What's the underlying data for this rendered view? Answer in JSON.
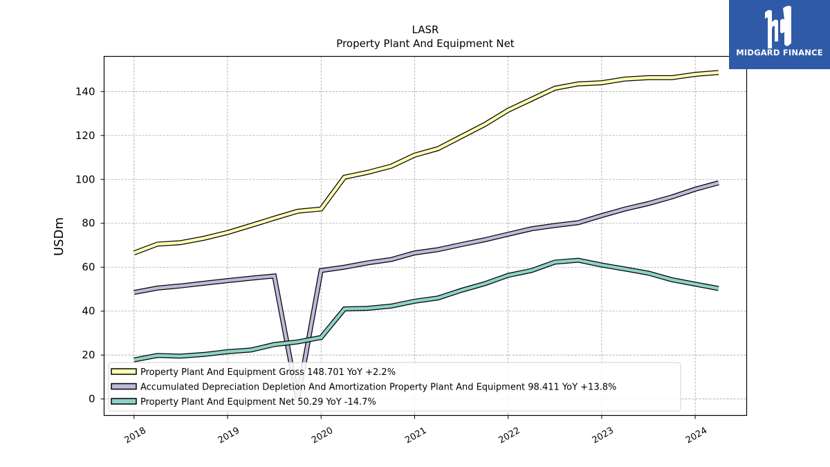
{
  "chart_data": {
    "type": "line",
    "title": "LASR",
    "subtitle": "Property Plant And Equipment Net",
    "xlabel": "",
    "ylabel": "USDm",
    "ylim": [
      -7.5,
      156
    ],
    "xlim": [
      2017.68,
      2024.55
    ],
    "yticks": [
      0,
      20,
      40,
      60,
      80,
      100,
      120,
      140
    ],
    "xticks": [
      "2018",
      "2019",
      "2020",
      "2021",
      "2022",
      "2023",
      "2024"
    ],
    "grid": true,
    "legend_position": "lower-left",
    "x": [
      2018.0,
      2018.25,
      2018.5,
      2018.75,
      2019.0,
      2019.25,
      2019.5,
      2019.75,
      2020.0,
      2020.25,
      2020.5,
      2020.75,
      2021.0,
      2021.25,
      2021.5,
      2021.75,
      2022.0,
      2022.25,
      2022.5,
      2022.75,
      2023.0,
      2023.25,
      2023.5,
      2023.75,
      2024.0,
      2024.25
    ],
    "series": [
      {
        "name": "Property Plant And Equipment Gross  148.701 YoY +2.2%",
        "color": "#ffffb3",
        "values": [
          66.5,
          70.5,
          71.2,
          73.2,
          75.8,
          79.0,
          82.3,
          85.5,
          86.5,
          101.0,
          103.2,
          106.0,
          111.0,
          114.0,
          119.5,
          125.0,
          131.5,
          136.5,
          141.5,
          143.5,
          144.0,
          145.7,
          146.3,
          146.3,
          147.8,
          148.7
        ]
      },
      {
        "name": "Accumulated Depreciation Depletion And Amortization Property Plant And Equipment  98.411 YoY +13.8%",
        "color": "#bebada",
        "values": [
          48.5,
          50.5,
          51.5,
          52.7,
          53.9,
          55.0,
          56.0,
          0.0,
          58.5,
          60.0,
          62.0,
          63.5,
          66.5,
          68.0,
          70.3,
          72.5,
          75.0,
          77.5,
          79.0,
          80.3,
          83.5,
          86.5,
          89.0,
          92.0,
          95.5,
          98.4
        ]
      },
      {
        "name": "Property Plant And Equipment Net  50.29 YoY -14.7%",
        "color": "#8dd3c7",
        "values": [
          17.8,
          19.8,
          19.5,
          20.3,
          21.5,
          22.3,
          24.8,
          26.0,
          28.0,
          41.0,
          41.3,
          42.3,
          44.5,
          46.0,
          49.5,
          52.5,
          56.3,
          58.5,
          62.3,
          63.2,
          61.0,
          59.2,
          57.3,
          54.3,
          52.3,
          50.3
        ]
      }
    ]
  },
  "logo": {
    "text": "MIDGARD FINANCE",
    "background": "#2f5aa8"
  }
}
